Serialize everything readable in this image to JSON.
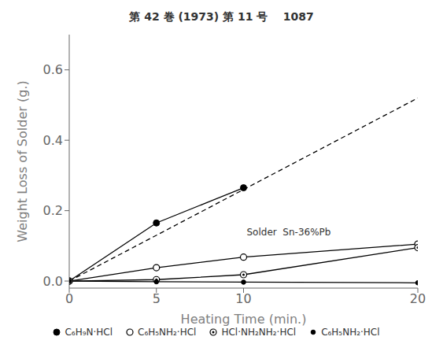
{
  "chart_data": {
    "type": "line",
    "title": "第 42 巻 (1973) 第 11 号    1087",
    "xlabel": "Heating Time (min.)",
    "ylabel": "Weight Loss of Solder (g.)",
    "xlim": [
      0,
      20
    ],
    "ylim": [
      -0.02,
      0.7
    ],
    "xticks": [
      0,
      5,
      10,
      20
    ],
    "yticks": [
      {
        "value": 0.0,
        "label": "0.0"
      },
      0.2,
      0.4,
      0.6
    ],
    "grid": false,
    "legend": "bottom",
    "annotation": "Solder  Sn-36%Pb",
    "series": [
      {
        "x": [
          0,
          20
        ],
        "values": [
          0.0,
          0.52
        ],
        "color": "#000000",
        "line_style": "dashed",
        "marker": "none"
      },
      {
        "x": [
          0,
          5,
          10
        ],
        "values": [
          0.0,
          0.165,
          0.265
        ],
        "color": "#000000",
        "line_style": "solid",
        "marker": "none"
      },
      {
        "name": "C₆H₉N·HCl",
        "x": [
          5,
          10
        ],
        "values": [
          0.165,
          0.265
        ],
        "color": "#000000",
        "line_style": "none",
        "marker": "filled_circle"
      },
      {
        "name": "C₆H₅NH₂·HCl",
        "x": [
          0,
          5,
          10,
          20
        ],
        "values": [
          0.0,
          0.038,
          0.068,
          0.105
        ],
        "color": "#000000",
        "line_style": "solid",
        "marker": "open_circle"
      },
      {
        "name": "HCl·NH₂NH₂·HCl",
        "x": [
          0,
          5,
          10,
          20
        ],
        "values": [
          0.0,
          0.004,
          0.018,
          0.095
        ],
        "color": "#000000",
        "line_style": "solid",
        "marker": "dot_circle"
      },
      {
        "name": "C₆H₅NH₂·HCl",
        "x": [
          0,
          5,
          10,
          20
        ],
        "values": [
          0.0,
          -0.002,
          -0.003,
          -0.005
        ],
        "color": "#000000",
        "line_style": "solid",
        "marker": "small_filled_circle"
      }
    ]
  }
}
